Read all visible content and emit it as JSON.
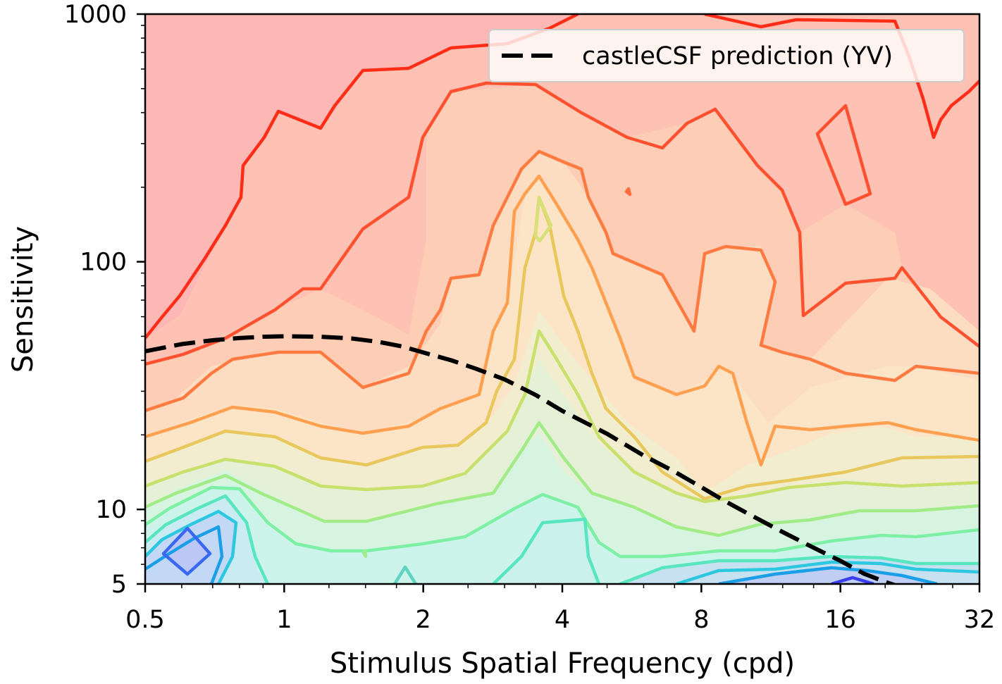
{
  "chart_data": {
    "type": "contour",
    "title": "",
    "xlabel": "Stimulus Spatial Frequency (cpd)",
    "ylabel": "Sensitivity",
    "xscale": "log2",
    "yscale": "log10",
    "xlim": [
      0.5,
      32
    ],
    "ylim": [
      5,
      1000
    ],
    "x_ticks": [
      {
        "value": 0.5,
        "label": "0.5"
      },
      {
        "value": 1,
        "label": "1"
      },
      {
        "value": 2,
        "label": "2"
      },
      {
        "value": 4,
        "label": "4"
      },
      {
        "value": 8,
        "label": "8"
      },
      {
        "value": 16,
        "label": "16"
      },
      {
        "value": 32,
        "label": "32"
      }
    ],
    "y_ticks": [
      {
        "value": 5,
        "label": "5"
      },
      {
        "value": 10,
        "label": "10"
      },
      {
        "value": 100,
        "label": "100"
      },
      {
        "value": 1000,
        "label": "1000"
      }
    ],
    "legend": {
      "placement": "top-right",
      "entries": [
        {
          "label": "castleCSF prediction (YV)",
          "style": "dashed",
          "color": "#000000"
        }
      ]
    },
    "grid": false,
    "colormap": "rainbow",
    "background_fill": "#fdb7b4",
    "prediction_curve": {
      "name": "castleCSF prediction (YV)",
      "x": [
        0.5,
        0.6,
        0.7,
        0.8,
        0.9,
        1.0,
        1.2,
        1.4,
        1.6,
        1.8,
        2.0,
        2.3,
        2.6,
        3.0,
        3.5,
        4.0,
        5.0,
        6.0,
        7.0,
        8.0,
        9.0,
        10.0,
        12.0,
        14.0,
        16.0,
        18.0,
        20.0,
        22.0,
        24.0
      ],
      "y": [
        43.5,
        46.5,
        48.2,
        49.2,
        49.8,
        50.0,
        49.8,
        49.0,
        47.5,
        45.5,
        43.0,
        40.0,
        37.0,
        33.5,
        29.0,
        25.0,
        20.2,
        16.5,
        14.2,
        12.3,
        10.8,
        9.7,
        8.1,
        7.0,
        6.2,
        5.5,
        5.1,
        4.8,
        4.5
      ]
    },
    "contours": [
      {
        "level": 1,
        "color": "#ff3219",
        "fill": "#fdb7b4",
        "x": [
          0.5,
          0.55,
          0.6,
          0.65,
          0.72,
          0.78,
          0.82,
          0.9,
          1.0,
          1.2,
          1.35,
          1.55,
          1.9,
          2.1,
          2.4,
          2.8,
          3.3,
          4.2,
          5.5,
          7.5,
          9.5,
          11.0,
          14.0,
          18.0,
          22.0,
          25.0,
          26.0,
          27.0,
          28.5,
          30.0,
          32.0
        ],
        "y": [
          48,
          58,
          70,
          85,
          110,
          170,
          240,
          270,
          400,
          350,
          430,
          600,
          620,
          700,
          770,
          820,
          880,
          1000,
          1000,
          1000,
          930,
          900,
          960,
          1000,
          1000,
          820,
          420,
          320,
          420,
          480,
          560
        ]
      },
      {
        "level": 2,
        "color": "#ff5a2d",
        "fill": "#fdc3b0",
        "x": [
          0.5,
          0.6,
          0.7,
          0.8,
          0.95,
          1.1,
          1.3,
          1.55,
          1.8,
          2.1,
          2.3,
          2.6,
          3.0,
          3.4,
          3.8,
          4.2,
          5.0,
          5.8,
          6.5,
          7.0,
          8.0,
          9.5,
          11.0,
          13.0,
          15.0,
          18.0,
          20.0,
          19.0,
          16.5,
          14.5,
          14.0,
          17.0,
          20.0,
          22.5,
          25.0,
          28.0,
          32.0
        ],
        "y": [
          42,
          44,
          46,
          50,
          60,
          65,
          70,
          85,
          160,
          200,
          210,
          250,
          330,
          370,
          430,
          500,
          540,
          470,
          390,
          370,
          420,
          350,
          250,
          220,
          200,
          270,
          310,
          230,
          190,
          230,
          270,
          310,
          270,
          190,
          180,
          190,
          180
        ]
      }
    ]
  }
}
